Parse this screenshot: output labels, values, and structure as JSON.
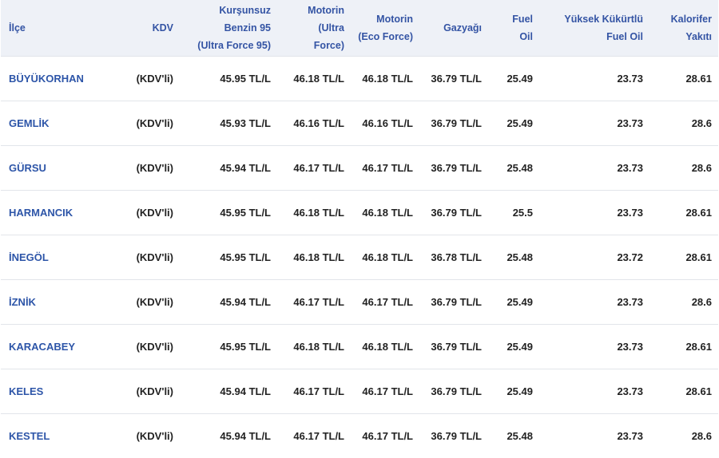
{
  "table": {
    "headers": [
      {
        "lines": [
          "İlçe"
        ]
      },
      {
        "lines": [
          "KDV"
        ]
      },
      {
        "lines": [
          "Kurşunsuz",
          "Benzin 95",
          "(Ultra Force 95)"
        ]
      },
      {
        "lines": [
          "Motorin",
          "(Ultra",
          "Force)"
        ]
      },
      {
        "lines": [
          "Motorin",
          "(Eco Force)"
        ]
      },
      {
        "lines": [
          "Gazyağı"
        ]
      },
      {
        "lines": [
          "Fuel",
          "Oil"
        ]
      },
      {
        "lines": [
          "Yüksek Kükürtlü",
          "Fuel Oil"
        ]
      },
      {
        "lines": [
          "Kalorifer",
          "Yakıtı"
        ]
      }
    ],
    "rows": [
      {
        "district": "BÜYÜKORHAN",
        "kdv": "(KDV'li)",
        "kursunsuz": "45.95 TL/L",
        "motorin_ultra": "46.18 TL/L",
        "motorin_eco": "46.18 TL/L",
        "gazyagi": "36.79 TL/L",
        "fuel_oil": "25.49",
        "yuksek_kukurtlu": "23.73",
        "kalorifer": "28.61"
      },
      {
        "district": "GEMLİK",
        "kdv": "(KDV'li)",
        "kursunsuz": "45.93 TL/L",
        "motorin_ultra": "46.16 TL/L",
        "motorin_eco": "46.16 TL/L",
        "gazyagi": "36.79 TL/L",
        "fuel_oil": "25.49",
        "yuksek_kukurtlu": "23.73",
        "kalorifer": "28.6"
      },
      {
        "district": "GÜRSU",
        "kdv": "(KDV'li)",
        "kursunsuz": "45.94 TL/L",
        "motorin_ultra": "46.17 TL/L",
        "motorin_eco": "46.17 TL/L",
        "gazyagi": "36.79 TL/L",
        "fuel_oil": "25.48",
        "yuksek_kukurtlu": "23.73",
        "kalorifer": "28.6"
      },
      {
        "district": "HARMANCIK",
        "kdv": "(KDV'li)",
        "kursunsuz": "45.95 TL/L",
        "motorin_ultra": "46.18 TL/L",
        "motorin_eco": "46.18 TL/L",
        "gazyagi": "36.79 TL/L",
        "fuel_oil": "25.5",
        "yuksek_kukurtlu": "23.73",
        "kalorifer": "28.61"
      },
      {
        "district": "İNEGÖL",
        "kdv": "(KDV'li)",
        "kursunsuz": "45.95 TL/L",
        "motorin_ultra": "46.18 TL/L",
        "motorin_eco": "46.18 TL/L",
        "gazyagi": "36.78 TL/L",
        "fuel_oil": "25.48",
        "yuksek_kukurtlu": "23.72",
        "kalorifer": "28.61"
      },
      {
        "district": "İZNİK",
        "kdv": "(KDV'li)",
        "kursunsuz": "45.94 TL/L",
        "motorin_ultra": "46.17 TL/L",
        "motorin_eco": "46.17 TL/L",
        "gazyagi": "36.79 TL/L",
        "fuel_oil": "25.49",
        "yuksek_kukurtlu": "23.73",
        "kalorifer": "28.6"
      },
      {
        "district": "KARACABEY",
        "kdv": "(KDV'li)",
        "kursunsuz": "45.95 TL/L",
        "motorin_ultra": "46.18 TL/L",
        "motorin_eco": "46.18 TL/L",
        "gazyagi": "36.79 TL/L",
        "fuel_oil": "25.49",
        "yuksek_kukurtlu": "23.73",
        "kalorifer": "28.61"
      },
      {
        "district": "KELES",
        "kdv": "(KDV'li)",
        "kursunsuz": "45.94 TL/L",
        "motorin_ultra": "46.17 TL/L",
        "motorin_eco": "46.17 TL/L",
        "gazyagi": "36.79 TL/L",
        "fuel_oil": "25.49",
        "yuksek_kukurtlu": "23.73",
        "kalorifer": "28.61"
      },
      {
        "district": "KESTEL",
        "kdv": "(KDV'li)",
        "kursunsuz": "45.94 TL/L",
        "motorin_ultra": "46.17 TL/L",
        "motorin_eco": "46.17 TL/L",
        "gazyagi": "36.79 TL/L",
        "fuel_oil": "25.48",
        "yuksek_kukurtlu": "23.73",
        "kalorifer": "28.6"
      }
    ]
  }
}
